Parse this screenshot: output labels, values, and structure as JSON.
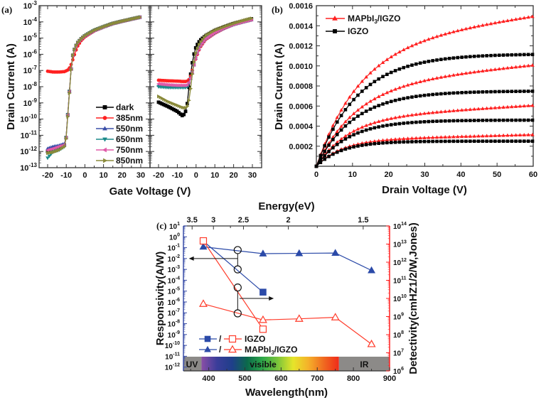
{
  "chart_data": [
    {
      "id": "a",
      "panel_label": "(a)",
      "type": "line",
      "title": "",
      "xlabel": "Gate Voltage (V)",
      "ylabel": "Drain Current (A)",
      "yscale": "log",
      "ylim": [
        1e-13,
        0.001
      ],
      "ytick_labels": [
        "10-13",
        "10-12",
        "10-11",
        "10-10",
        "10-9",
        "10-8",
        "10-7",
        "10-6",
        "10-5",
        "10-4",
        "10-3"
      ],
      "subplots": [
        {
          "name": "left",
          "xlim": [
            -25,
            35
          ],
          "xticks": [
            -20,
            -10,
            0,
            10,
            20,
            30
          ]
        },
        {
          "name": "right",
          "xlim": [
            -25,
            35
          ],
          "xticks": [
            -20,
            -10,
            0,
            10,
            20,
            30
          ]
        }
      ],
      "legend": {
        "placement": "lower-right of left subplot"
      },
      "series_left": [
        {
          "name": "dark",
          "color": "#000000",
          "marker": "square",
          "x": [
            -20,
            -17,
            -14,
            -11,
            -10,
            -9,
            -8,
            -7,
            -6,
            -5,
            -4,
            -2,
            0,
            5,
            10,
            15,
            20,
            25,
            30
          ],
          "y": [
            1e-12,
            1.3e-12,
            1.8e-12,
            2.5e-12,
            8e-12,
            4e-10,
            1.5e-08,
            5e-07,
            1.5e-06,
            3e-06,
            5e-06,
            9e-06,
            1.4e-05,
            3e-05,
            5e-05,
            8e-05,
            0.00011,
            0.00015,
            0.0002
          ]
        },
        {
          "name": "385nm",
          "color": "#ff2020",
          "marker": "circle",
          "x": [
            -20,
            -17,
            -14,
            -11,
            -10,
            -9,
            -8,
            -7,
            -6,
            -5,
            -4,
            -2,
            0,
            5,
            10,
            15,
            20,
            25,
            30
          ],
          "y": [
            9e-08,
            8e-08,
            8e-08,
            8.5e-08,
            9.5e-08,
            1.1e-07,
            1.6e-07,
            3e-07,
            7e-07,
            1.5e-06,
            3e-06,
            7e-06,
            1.2e-05,
            2.8e-05,
            5e-05,
            8e-05,
            0.00011,
            0.00015,
            0.0002
          ]
        },
        {
          "name": "550nm",
          "color": "#3a4ea8",
          "marker": "triangle-up",
          "x": [
            -20,
            -17,
            -14,
            -11,
            -10,
            -9,
            -8,
            -7,
            -6,
            -5,
            -4,
            -2,
            0,
            5,
            10,
            15,
            20,
            25,
            30
          ],
          "y": [
            1.5e-12,
            2e-12,
            2.3e-12,
            3e-12,
            8e-12,
            4e-10,
            1.5e-08,
            5e-07,
            1.5e-06,
            3e-06,
            5e-06,
            9e-06,
            1.4e-05,
            3e-05,
            5e-05,
            8e-05,
            0.00011,
            0.00015,
            0.0002
          ]
        },
        {
          "name": "650nm",
          "color": "#1a8a8a",
          "marker": "triangle-down",
          "x": [
            -20,
            -17,
            -14,
            -11,
            -10,
            -9,
            -8,
            -7,
            -6,
            -5,
            -4,
            -2,
            0,
            5,
            10,
            15,
            20,
            25,
            30
          ],
          "y": [
            4e-13,
            1e-12,
            1.2e-12,
            2e-12,
            8e-12,
            4e-10,
            1.5e-08,
            5e-07,
            1.5e-06,
            3e-06,
            5e-06,
            9e-06,
            1.4e-05,
            3e-05,
            5e-05,
            8e-05,
            0.00011,
            0.00015,
            0.0002
          ]
        },
        {
          "name": "750nm",
          "color": "#e05aa8",
          "marker": "triangle-left",
          "x": [
            -20,
            -17,
            -14,
            -11,
            -10,
            -9,
            -8,
            -7,
            -6,
            -5,
            -4,
            -2,
            0,
            5,
            10,
            15,
            20,
            25,
            30
          ],
          "y": [
            1.2e-12,
            1.5e-12,
            2e-12,
            2.5e-12,
            8e-12,
            4e-10,
            1.5e-08,
            5e-07,
            1.5e-06,
            3e-06,
            5e-06,
            9e-06,
            1.4e-05,
            3e-05,
            5e-05,
            8e-05,
            0.00011,
            0.00015,
            0.0002
          ]
        },
        {
          "name": "850nm",
          "color": "#8a8a3a",
          "marker": "triangle-right",
          "x": [
            -20,
            -17,
            -14,
            -11,
            -10,
            -9,
            -8,
            -7,
            -6,
            -5,
            -4,
            -2,
            0,
            5,
            10,
            15,
            20,
            25,
            30
          ],
          "y": [
            8e-13,
            9e-13,
            1.2e-12,
            2e-12,
            7e-12,
            3e-10,
            1.2e-08,
            5e-07,
            1.5e-06,
            3e-06,
            5e-06,
            9e-06,
            1.4e-05,
            3e-05,
            5e-05,
            8e-05,
            0.00011,
            0.00015,
            0.0002
          ]
        }
      ],
      "series_right": [
        {
          "name": "dark",
          "color": "#000000",
          "marker": "square",
          "x": [
            -20,
            -15,
            -10,
            -7,
            -5,
            -4,
            -3,
            -2,
            -1,
            0,
            2,
            5,
            10,
            15,
            20,
            25,
            30
          ],
          "y": [
            1.1e-09,
            6e-10,
            3e-10,
            1.5e-10,
            4e-10,
            6e-09,
            5e-08,
            3e-07,
            1.2e-06,
            3e-06,
            7e-06,
            1.4e-05,
            3e-05,
            5e-05,
            8e-05,
            0.00011,
            0.00016
          ]
        },
        {
          "name": "385nm",
          "color": "#ff2020",
          "marker": "circle",
          "x": [
            -20,
            -15,
            -10,
            -7,
            -5,
            -4,
            -3,
            -2,
            -1,
            0,
            2,
            5,
            10,
            15,
            20,
            25,
            30
          ],
          "y": [
            2.5e-08,
            2.3e-08,
            2.2e-08,
            2.1e-08,
            2.1e-08,
            2.5e-08,
            4e-08,
            1e-07,
            2.5e-07,
            6e-07,
            2.5e-06,
            8e-06,
            2e-05,
            4e-05,
            7e-05,
            0.0001,
            0.00014
          ]
        },
        {
          "name": "550nm",
          "color": "#3a4ea8",
          "marker": "triangle-up",
          "x": [
            -20,
            -15,
            -10,
            -7,
            -5,
            -4,
            -3,
            -2,
            -1,
            0,
            2,
            5,
            10,
            15,
            20,
            25,
            30
          ],
          "y": [
            1.2e-08,
            1.1e-08,
            1e-08,
            1e-08,
            1e-08,
            1.5e-08,
            3e-08,
            8e-08,
            2.5e-07,
            7e-07,
            3e-06,
            9e-06,
            2.2e-05,
            4.2e-05,
            7e-05,
            0.0001,
            0.00014
          ]
        },
        {
          "name": "650nm",
          "color": "#1a8a8a",
          "marker": "triangle-down",
          "x": [
            -20,
            -15,
            -10,
            -7,
            -5,
            -4,
            -3,
            -2,
            -1,
            0,
            2,
            5,
            10,
            15,
            20,
            25,
            30
          ],
          "y": [
            1e-08,
            9e-09,
            9e-09,
            9e-09,
            9e-09,
            1.4e-08,
            3e-08,
            8e-08,
            2.5e-07,
            7e-07,
            3e-06,
            9e-06,
            2.2e-05,
            4.2e-05,
            7e-05,
            0.0001,
            0.00014
          ]
        },
        {
          "name": "750nm",
          "color": "#e05aa8",
          "marker": "triangle-left",
          "x": [
            -20,
            -15,
            -10,
            -7,
            -5,
            -4,
            -3,
            -2,
            -1,
            0,
            2,
            5,
            10,
            15,
            20,
            25,
            30
          ],
          "y": [
            1.5e-08,
            1.3e-08,
            1.2e-08,
            1.2e-08,
            1.2e-08,
            1.6e-08,
            3e-08,
            8e-08,
            2.5e-07,
            7e-07,
            3e-06,
            9e-06,
            2.2e-05,
            4.2e-05,
            7e-05,
            0.0001,
            0.00014
          ]
        },
        {
          "name": "850nm",
          "color": "#8a8a3a",
          "marker": "triangle-right",
          "x": [
            -20,
            -15,
            -10,
            -7,
            -5,
            -4,
            -3,
            -2,
            -1,
            0,
            2,
            5,
            10,
            15,
            20,
            25,
            30
          ],
          "y": [
            2.5e-09,
            1.2e-09,
            7e-10,
            5e-10,
            5e-10,
            1e-09,
            6e-09,
            6e-08,
            4e-07,
            1.5e-06,
            5e-06,
            1.4e-05,
            3e-05,
            5e-05,
            8e-05,
            0.00012,
            0.00017
          ]
        }
      ]
    },
    {
      "id": "b",
      "panel_label": "(b)",
      "type": "line",
      "title": "",
      "xlabel": "Drain Voltage (V)",
      "ylabel": "Drain Current (A)",
      "xlim": [
        0,
        60
      ],
      "ylim": [
        0,
        0.0016
      ],
      "xticks": [
        0,
        10,
        20,
        30,
        40,
        50,
        60
      ],
      "yticks": [
        0.0002,
        0.0004,
        0.0006,
        0.0008,
        0.001,
        0.0012,
        0.0014,
        0.0016
      ],
      "ytick_labels": [
        "0.0002",
        "0.0004",
        "0.0006",
        "0.0008",
        "0.0010",
        "0.0012",
        "0.0014",
        "0.0016"
      ],
      "legend": {
        "placement": "top-left",
        "entries": [
          "MAPbI3/IGZO",
          "IGZO"
        ]
      },
      "series": [
        {
          "name": "MAPbI3/IGZO",
          "color": "#ff2020",
          "marker": "triangle-up",
          "curves": [
            {
              "sat": 0.00026,
              "slope": 9e-07,
              "vk": 7
            },
            {
              "sat": 0.00048,
              "slope": 2.1e-06,
              "vk": 9
            },
            {
              "sat": 0.0008,
              "slope": 3.5e-06,
              "vk": 11
            },
            {
              "sat": 0.0012,
              "slope": 5e-06,
              "vk": 12
            }
          ]
        },
        {
          "name": "IGZO",
          "color": "#000000",
          "marker": "square",
          "curves": [
            {
              "sat": 0.00025,
              "slope": 0.0,
              "vk": 7
            },
            {
              "sat": 0.00046,
              "slope": 0.0,
              "vk": 9
            },
            {
              "sat": 0.00075,
              "slope": 0.0,
              "vk": 10.5
            },
            {
              "sat": 0.00112,
              "slope": 0.0,
              "vk": 11.5
            }
          ]
        }
      ],
      "legend_labels": {
        "mapbi_main": "MAPbI",
        "mapbi_sub": "3",
        "mapbi_rest": "/IGZO",
        "igzo": "IGZO"
      }
    },
    {
      "id": "c",
      "panel_label": "(c)",
      "type": "line",
      "title": "",
      "xlabel": "Wavelength(nm)",
      "top_xlabel": "Energy(eV)",
      "ylabel_left": "Responsivity(A/W)",
      "ylabel_right": "Detectivity(cmHZ1/2/W,Jones)",
      "xlim": [
        330,
        900
      ],
      "xticks": [
        400,
        500,
        600,
        700,
        800,
        900
      ],
      "top_xticks": [
        {
          "label": "3.5",
          "value": 354
        },
        {
          "label": "3",
          "value": 413
        },
        {
          "label": "2.5",
          "value": 496
        },
        {
          "label": "2",
          "value": 620
        },
        {
          "label": "1.5",
          "value": 827
        }
      ],
      "yscale": "log",
      "ylim_left": [
        1e-12,
        10
      ],
      "ylim_right": [
        1000000.0,
        100000000000000.0
      ],
      "ytick_labels_left": [
        "10-12",
        "10-11",
        "10-10",
        "10-9",
        "10-8",
        "10-7",
        "10-6",
        "10-5",
        "10-4",
        "10-3",
        "10-2",
        "10-1",
        "100",
        "101"
      ],
      "ytick_labels_right": [
        "106",
        "107",
        "108",
        "109",
        "1010",
        "1011",
        "1012",
        "1013",
        "1014"
      ],
      "colors": {
        "left_axis": "#3a4ea8",
        "right_axis": "#ff2020"
      },
      "series": [
        {
          "name": "IGZO Responsivity",
          "axis": "left",
          "color": "#2b4aa8",
          "marker": "filled-square",
          "x": [
            385,
            550
          ],
          "y": [
            0.4,
            8e-06
          ]
        },
        {
          "name": "MAPbI3/IGZO Responsivity",
          "axis": "left",
          "color": "#2b4aa8",
          "marker": "filled-triangle",
          "x": [
            385,
            550,
            650,
            750,
            850
          ],
          "y": [
            0.12,
            0.028,
            0.03,
            0.032,
            0.0008
          ]
        },
        {
          "name": "IGZO Detectivity",
          "axis": "right",
          "color": "#ff3b2a",
          "marker": "open-square",
          "x": [
            385,
            550
          ],
          "y": [
            15000000000000.0,
            200000000.0
          ]
        },
        {
          "name": "MAPbI3/IGZO Detectivity",
          "axis": "right",
          "color": "#ff3b2a",
          "marker": "open-triangle",
          "x": [
            385,
            550,
            650,
            750,
            850
          ],
          "y": [
            5000000000.0,
            650000000.0,
            750000000.0,
            900000000.0,
            30000000.0
          ]
        }
      ],
      "annotations": {
        "circles": [
          {
            "axis": "left",
            "x": 480,
            "y": 0.06
          },
          {
            "axis": "left",
            "x": 480,
            "y": 0.001
          },
          {
            "axis": "right",
            "x": 480,
            "y": 40000000000.0
          },
          {
            "axis": "right",
            "x": 480,
            "y": 1500000000.0
          }
        ],
        "arrow_left": {
          "from_x": 480,
          "to_x": 345,
          "axis": "left",
          "y": 0.01
        },
        "arrow_right": {
          "from_x": 485,
          "to_x": 580,
          "axis": "right",
          "y": 10000000000.0
        }
      },
      "spectrum_bands": [
        {
          "label": "UV",
          "from": 330,
          "to": 380,
          "color": "#8c8a88"
        },
        {
          "label": "visible",
          "from": 380,
          "to": 760,
          "gradient": [
            "#8a4fa6",
            "#3b3d9a",
            "#1f3f8a",
            "#0b6a4a",
            "#2ea84a",
            "#7cc53a",
            "#e6e52a",
            "#f5b02a",
            "#f06a20",
            "#f02a1a"
          ]
        },
        {
          "label": "IR",
          "from": 760,
          "to": 900,
          "color": "#8c8a88"
        }
      ],
      "legend": {
        "placement": "bottom-left",
        "entries": [
          {
            "label": "IGZO",
            "sep": "/"
          },
          {
            "label": "MAPbI3/IGZO",
            "sep": "/"
          }
        ]
      },
      "legend_labels": {
        "igzo": "IGZO",
        "mapbi_main": "MAPbI",
        "mapbi_sub": "3",
        "mapbi_rest": "/IGZO",
        "sep": "/"
      }
    }
  ]
}
